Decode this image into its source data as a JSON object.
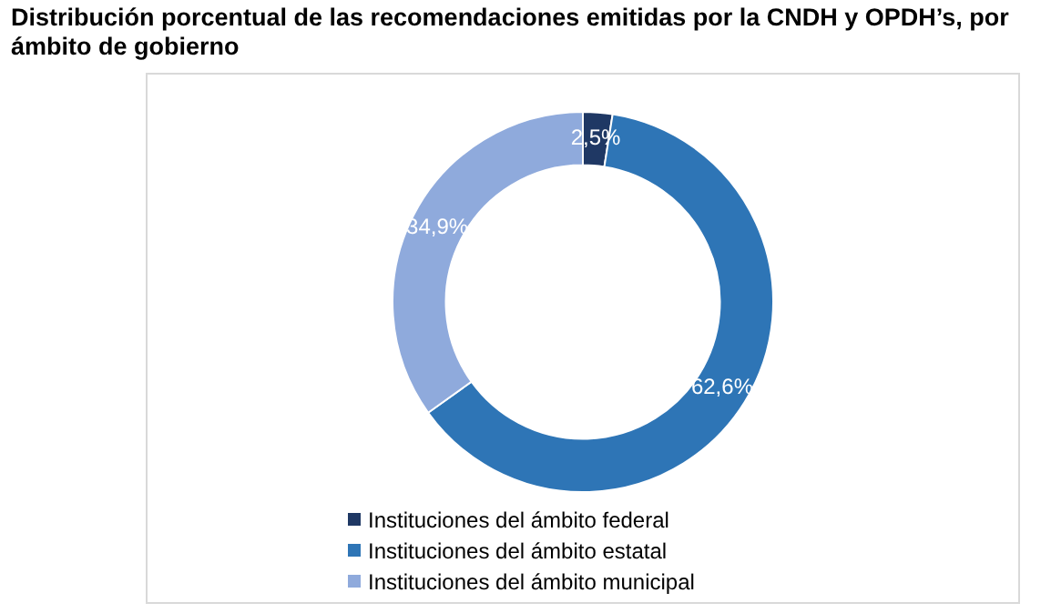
{
  "chart_data": {
    "type": "donut",
    "title": "Distribución porcentual de las recomendaciones emitidas por la CNDH y OPDH’s, por ámbito de gobierno",
    "categories": [
      "Instituciones del ámbito federal",
      "Instituciones del ámbito estatal",
      "Instituciones del ámbito municipal"
    ],
    "values": [
      2.5,
      62.6,
      34.9
    ],
    "colors": [
      "#1f3864",
      "#2e75b6",
      "#8faadc"
    ],
    "value_labels": [
      "2,5%",
      "62,6%",
      "34,9%"
    ],
    "legend": "bottom"
  }
}
